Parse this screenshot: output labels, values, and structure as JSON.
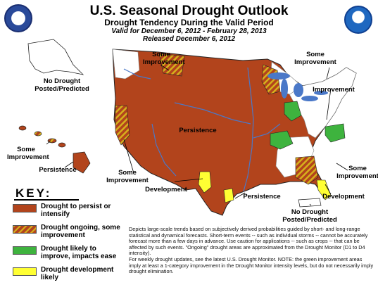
{
  "header": {
    "title": "U.S. Seasonal Drought Outlook",
    "subtitle": "Drought Tendency During the Valid Period",
    "valid": "Valid for December 6, 2012 - February 28, 2013",
    "released": "Released December 6, 2012"
  },
  "logos": {
    "left": "us-department-of-commerce-seal",
    "right": "noaa-logo"
  },
  "map_labels": {
    "some_improvement_nw": "Some Improvement",
    "some_improvement_ne": "Some Improvement",
    "improvement": "Improvement",
    "no_drought_ak": "No Drought Posted/Predicted",
    "persistence_center": "Persistence",
    "some_improvement_hi": "Some Improvement",
    "persistence_hi": "Persistence",
    "some_improvement_sw": "Some Improvement",
    "some_improvement_se": "Some Improvement",
    "development_tx": "Development",
    "persistence_gulf": "Persistence",
    "development_fl": "Development",
    "no_drought_pr": "No Drought Posted/Predicted"
  },
  "key": {
    "title": "KEY:",
    "items": [
      {
        "label": "Drought to persist or intensify",
        "color": "#b2441c",
        "pattern": "solid"
      },
      {
        "label": "Drought ongoing, some improvement",
        "color": "#b2441c",
        "stripe": "#d6b11c",
        "pattern": "hatched"
      },
      {
        "label": "Drought likely to improve, impacts ease",
        "color": "#3eb33e",
        "pattern": "solid"
      },
      {
        "label": "Drought development likely",
        "color": "#ffff33",
        "pattern": "solid"
      }
    ]
  },
  "notes": [
    "Depicts large-scale trends based on subjectively derived probabilities guided by short- and long-range statistical and dynamical forecasts. Short-term events -- such as individual storms -- cannot be accurately forecast more than a few days in advance. Use caution for applications -- such as crops -- that can be affected by such events. \"Ongoing\" drought areas are approximated from the Drought Monitor (D1 to D4 intensity).",
    "For weekly drought updates, see the latest U.S. Drought Monitor. NOTE: the green improvement areas imply at least a 1-category improvement in the Drought Monitor intensity levels, but do not necessarily imply drought elimination."
  ],
  "colors": {
    "persist": "#b2441c",
    "improve": "#3eb33e",
    "develop": "#ffff33",
    "stripe": "#d6b11c",
    "water": "#4a78c8"
  }
}
